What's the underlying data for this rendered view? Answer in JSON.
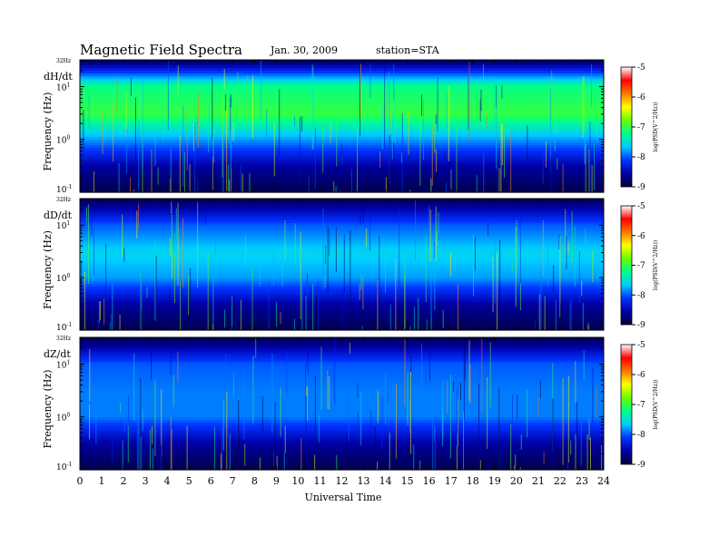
{
  "header": {
    "title": "Magnetic  Field  Spectra",
    "date": "Jan. 30, 2009",
    "station": "station=STA"
  },
  "chart_data": {
    "type": "heatmap",
    "xlabel": "Universal Time",
    "x_ticks": [
      0,
      1,
      2,
      3,
      4,
      5,
      6,
      7,
      8,
      9,
      10,
      11,
      12,
      13,
      14,
      15,
      16,
      17,
      18,
      19,
      20,
      21,
      22,
      23,
      24
    ],
    "xlim": [
      0,
      24
    ],
    "colorbar": {
      "label": "log(PSD(V^2/Hz))",
      "ticks": [
        -5,
        -6,
        -7,
        -8,
        -9
      ],
      "range": [
        -9,
        -5
      ],
      "colormap": [
        "#000033",
        "#0000aa",
        "#0033ff",
        "#00ccff",
        "#00ff88",
        "#66ff00",
        "#ffff00",
        "#ff7700",
        "#ff0000",
        "#ffffff"
      ]
    },
    "panels": [
      {
        "name": "dH/dt",
        "ylabel": "Frequency  (Hz)",
        "y_top_label": "32Hz",
        "y_ticks": [
          {
            "label": "10",
            "exp": "1"
          },
          {
            "label": "10",
            "exp": "0"
          },
          {
            "label": "10",
            "exp": "-1"
          }
        ],
        "scale": "log",
        "ylim_hz": [
          0.1,
          32
        ],
        "intensity_profile": {
          "hz": [
            0.1,
            0.3,
            1,
            3,
            10,
            32
          ],
          "log_psd": [
            -8.9,
            -8.6,
            -7.8,
            -7.0,
            -7.2,
            -8.9
          ]
        }
      },
      {
        "name": "dD/dt",
        "ylabel": "Frequency  (Hz)",
        "y_top_label": "32Hz",
        "y_ticks": [
          {
            "label": "10",
            "exp": "1"
          },
          {
            "label": "10",
            "exp": "0"
          },
          {
            "label": "10",
            "exp": "-1"
          }
        ],
        "scale": "log",
        "ylim_hz": [
          0.1,
          32
        ],
        "intensity_profile": {
          "hz": [
            0.1,
            0.3,
            1,
            3,
            10,
            32
          ],
          "log_psd": [
            -8.9,
            -8.6,
            -7.8,
            -7.6,
            -8.0,
            -8.9
          ]
        }
      },
      {
        "name": "dZ/dt",
        "ylabel": "Frequency  (Hz)",
        "y_top_label": "32Hz",
        "y_ticks": [
          {
            "label": "10",
            "exp": "1"
          },
          {
            "label": "10",
            "exp": "0"
          },
          {
            "label": "10",
            "exp": "-1"
          }
        ],
        "scale": "log",
        "ylim_hz": [
          0.1,
          32
        ],
        "intensity_profile": {
          "hz": [
            0.1,
            0.3,
            1,
            3,
            10,
            32
          ],
          "log_psd": [
            -8.9,
            -8.6,
            -7.9,
            -7.9,
            -8.0,
            -8.9
          ]
        }
      }
    ]
  }
}
